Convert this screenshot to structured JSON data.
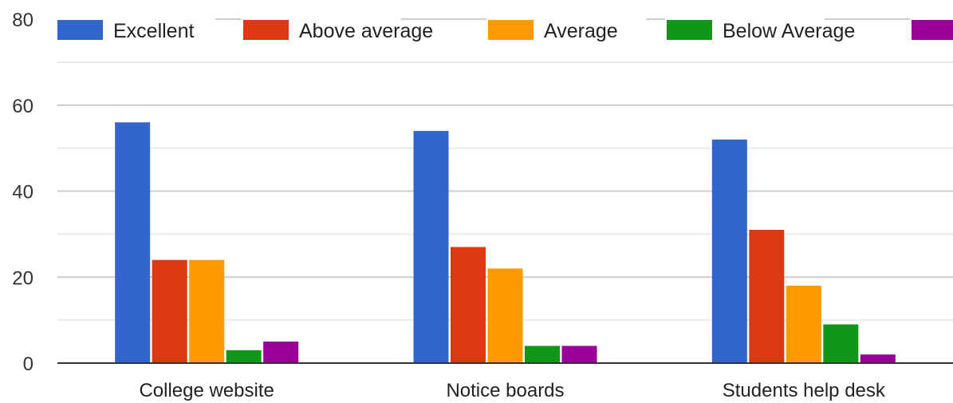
{
  "chart_data": {
    "type": "bar",
    "title": "",
    "xlabel": "",
    "ylabel": "",
    "categories": [
      "College website",
      "Notice boards",
      "Students help desk"
    ],
    "series": [
      {
        "name": "Excellent",
        "color": "#3366cc",
        "values": [
          56,
          54,
          52
        ]
      },
      {
        "name": "Above average",
        "color": "#dc3912",
        "values": [
          24,
          27,
          31
        ]
      },
      {
        "name": "Average",
        "color": "#ff9900",
        "values": [
          24,
          22,
          18
        ]
      },
      {
        "name": "Below Average",
        "color": "#109618",
        "values": [
          3,
          4,
          9
        ]
      },
      {
        "name": "",
        "color": "#990099",
        "values": [
          5,
          4,
          2
        ]
      }
    ],
    "ylim": [
      0,
      80
    ],
    "yticks": [
      "0",
      "20",
      "40",
      "60",
      "80"
    ],
    "grid": true,
    "minor_grid": true,
    "legend_position": "top"
  }
}
